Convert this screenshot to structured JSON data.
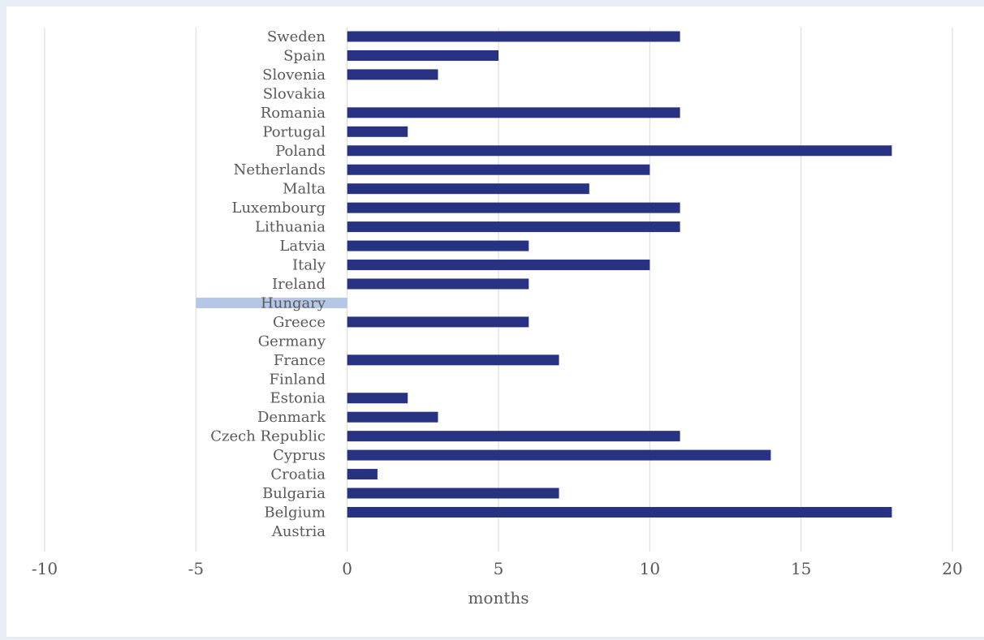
{
  "chart_data": {
    "type": "bar",
    "orientation": "horizontal",
    "categories": [
      "Sweden",
      "Spain",
      "Slovenia",
      "Slovakia",
      "Romania",
      "Portugal",
      "Poland",
      "Netherlands",
      "Malta",
      "Luxembourg",
      "Lithuania",
      "Latvia",
      "Italy",
      "Ireland",
      "Hungary",
      "Greece",
      "Germany",
      "France",
      "Finland",
      "Estonia",
      "Denmark",
      "Czech Republic",
      "Cyprus",
      "Croatia",
      "Bulgaria",
      "Belgium",
      "Austria"
    ],
    "values": [
      11,
      5,
      3,
      null,
      11,
      2,
      18,
      10,
      8,
      11,
      11,
      6,
      10,
      6,
      -5,
      6,
      null,
      7,
      null,
      2,
      3,
      11,
      14,
      1,
      7,
      18,
      null
    ],
    "xlabel": "months",
    "ylabel": "",
    "xlim": [
      -10,
      20
    ],
    "xticks": [
      "-10",
      "-5",
      "0",
      "5",
      "10",
      "15",
      "20"
    ],
    "grid": "vertical",
    "bar_color": "#283282",
    "highlight_color": "#b4c7e7",
    "highlight_category": "Hungary"
  }
}
